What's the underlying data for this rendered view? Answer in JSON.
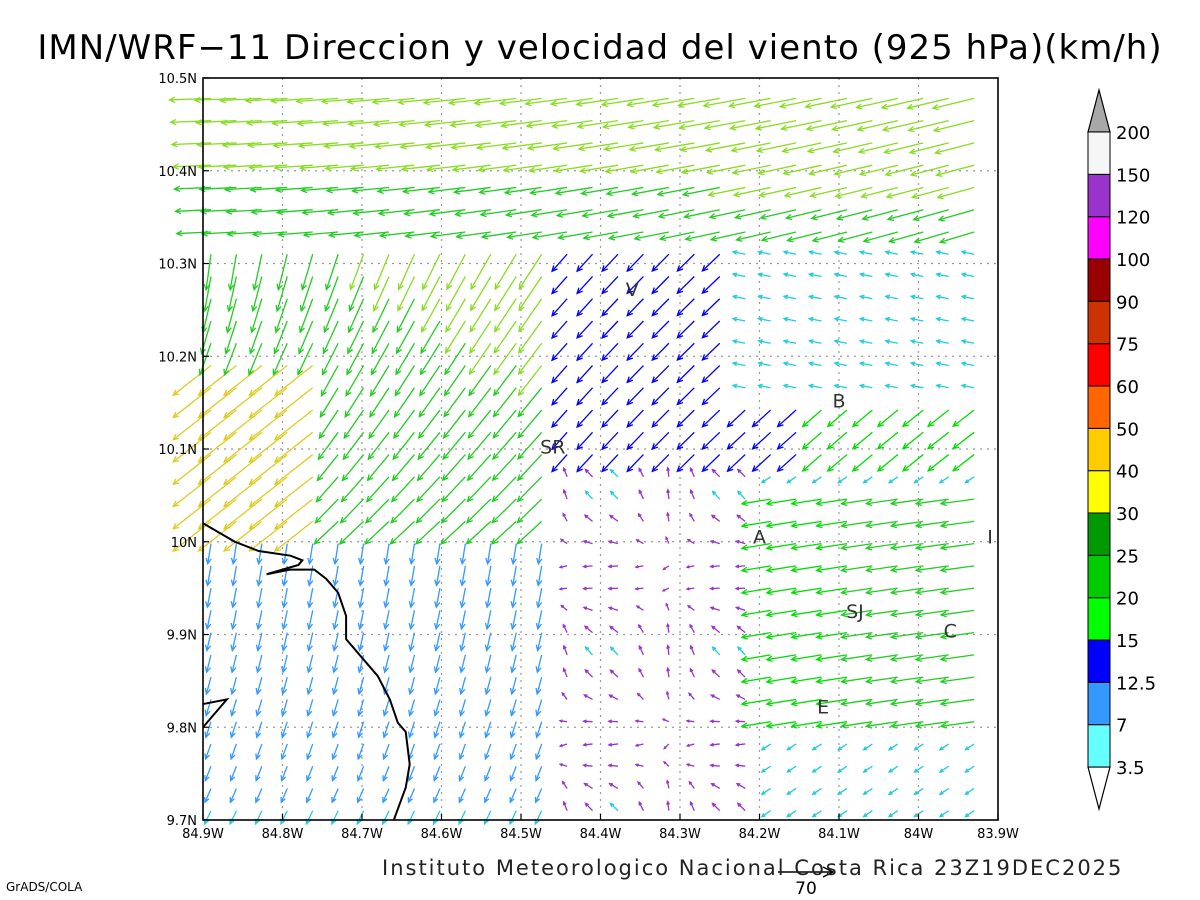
{
  "title": "IMN/WRF−11 Direccion y velocidad del viento (925 hPa)(km/h)",
  "credit": "Instituto Meteorologico Nacional Costa Rica  23Z19DEC2025",
  "software": "GrADS/COLA",
  "map": {
    "lon_range": [
      -84.9,
      -83.9
    ],
    "lat_range": [
      9.7,
      10.5
    ],
    "grid": true,
    "lon_ticks": [
      {
        "value": -84.9,
        "label": "84.9W"
      },
      {
        "value": -84.8,
        "label": "84.8W"
      },
      {
        "value": -84.7,
        "label": "84.7W"
      },
      {
        "value": -84.6,
        "label": "84.6W"
      },
      {
        "value": -84.5,
        "label": "84.5W"
      },
      {
        "value": -84.4,
        "label": "84.4W"
      },
      {
        "value": -84.3,
        "label": "84.3W"
      },
      {
        "value": -84.2,
        "label": "84.2W"
      },
      {
        "value": -84.1,
        "label": "84.1W"
      },
      {
        "value": -84.0,
        "label": "84W"
      },
      {
        "value": -83.9,
        "label": "83.9W"
      }
    ],
    "lat_ticks": [
      {
        "value": 9.7,
        "label": "9.7N"
      },
      {
        "value": 9.8,
        "label": "9.8N"
      },
      {
        "value": 9.9,
        "label": "9.9N"
      },
      {
        "value": 10.0,
        "label": "10N"
      },
      {
        "value": 10.1,
        "label": "10.1N"
      },
      {
        "value": 10.2,
        "label": "10.2N"
      },
      {
        "value": 10.3,
        "label": "10.3N"
      },
      {
        "value": 10.4,
        "label": "10.4N"
      },
      {
        "value": 10.5,
        "label": "10.5N"
      }
    ],
    "cities": [
      {
        "label": "V",
        "lon": -84.36,
        "lat": 10.265
      },
      {
        "label": "SR",
        "lon": -84.46,
        "lat": 10.095
      },
      {
        "label": "B",
        "lon": -84.1,
        "lat": 10.145
      },
      {
        "label": "A",
        "lon": -84.2,
        "lat": 9.998
      },
      {
        "label": "I",
        "lon": -83.91,
        "lat": 9.998
      },
      {
        "label": "SJ",
        "lon": -84.08,
        "lat": 9.918
      },
      {
        "label": "C",
        "lon": -83.96,
        "lat": 9.897
      },
      {
        "label": "E",
        "lon": -84.12,
        "lat": 9.815
      }
    ],
    "coastline": [
      [
        [
          -84.9,
          10.02
        ],
        [
          -84.86,
          10.0
        ],
        [
          -84.83,
          9.99
        ],
        [
          -84.79,
          9.985
        ],
        [
          -84.775,
          9.98
        ],
        [
          -84.78,
          9.975
        ],
        [
          -84.82,
          9.965
        ],
        [
          -84.79,
          9.97
        ],
        [
          -84.76,
          9.97
        ],
        [
          -84.745,
          9.96
        ],
        [
          -84.73,
          9.945
        ],
        [
          -84.72,
          9.92
        ],
        [
          -84.72,
          9.895
        ],
        [
          -84.7,
          9.875
        ],
        [
          -84.68,
          9.855
        ],
        [
          -84.665,
          9.83
        ],
        [
          -84.655,
          9.805
        ],
        [
          -84.645,
          9.795
        ],
        [
          -84.64,
          9.76
        ],
        [
          -84.645,
          9.735
        ],
        [
          -84.66,
          9.7
        ]
      ],
      [
        [
          -84.9,
          9.825
        ],
        [
          -84.87,
          9.83
        ],
        [
          -84.9,
          9.8
        ]
      ]
    ]
  },
  "wind_reference": {
    "value": "70"
  },
  "colorbar": {
    "levels": [
      "3.5",
      "7",
      "12.5",
      "15",
      "20",
      "25",
      "30",
      "40",
      "50",
      "60",
      "75",
      "90",
      "100",
      "120",
      "150",
      "200"
    ],
    "colors": [
      "#ffffff",
      "#66ffff",
      "#3399ff",
      "#0000ff",
      "#00ff00",
      "#00cc00",
      "#009900",
      "#ffff00",
      "#ffcc00",
      "#ff6600",
      "#ff0000",
      "#cc3300",
      "#990000",
      "#ff00ff",
      "#9933cc",
      "#f6f6f6",
      "#a8a8a8"
    ]
  }
}
